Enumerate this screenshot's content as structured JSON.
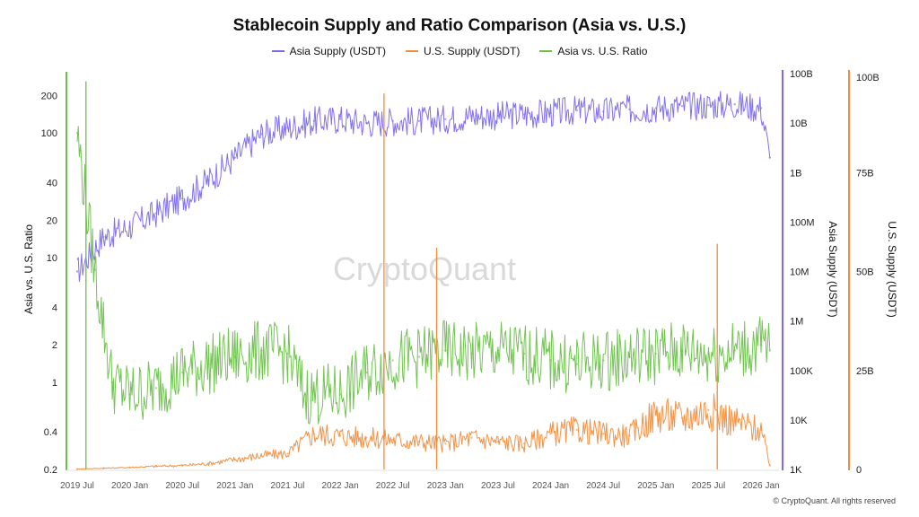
{
  "chart_data": {
    "type": "line",
    "title": "Stablecoin Supply and Ratio Comparison (Asia vs. U.S.)",
    "watermark": "CryptoQuant",
    "footer": "© CryptoQuant. All rights reserved",
    "x_tick_labels": [
      "2019 Jul",
      "2020 Jan",
      "2020 Jul",
      "2021 Jan",
      "2021 Jul",
      "2022 Jan",
      "2022 Jul",
      "2023 Jan",
      "2023 Jul",
      "2024 Jan",
      "2024 Jul",
      "2025 Jan",
      "2025 Jul",
      "2026 Jan"
    ],
    "axes": {
      "left": {
        "label": "Asia vs. U.S. Ratio",
        "scale": "log",
        "range": [
          0.2,
          300
        ],
        "tick_values": [
          0.2,
          0.4,
          1,
          2,
          4,
          10,
          20,
          40,
          100,
          200
        ],
        "tick_labels": [
          "0.2",
          "0.4",
          "1",
          "2",
          "4",
          "10",
          "20",
          "40",
          "100",
          "200"
        ]
      },
      "right1": {
        "label": "Asia Supply (USDT)",
        "scale": "log",
        "range": [
          1000,
          100000000000
        ],
        "tick_values": [
          1000,
          10000,
          100000,
          1000000,
          10000000,
          100000000,
          1000000000,
          10000000000,
          100000000000
        ],
        "tick_labels": [
          "1K",
          "10K",
          "100K",
          "1M",
          "10M",
          "100M",
          "1B",
          "10B",
          "100B"
        ]
      },
      "right2": {
        "label": "U.S. Supply (USDT)",
        "scale": "linear",
        "range": [
          0,
          100000000000
        ],
        "tick_values": [
          0,
          25000000000,
          50000000000,
          75000000000,
          100000000000
        ],
        "tick_labels": [
          "0",
          "25B",
          "50B",
          "75B",
          "100B"
        ]
      }
    },
    "series": [
      {
        "name": "Asia Supply (USDT)",
        "color": "#7b68ee",
        "axis": "right1",
        "x": [
          "2019-07",
          "2019-10",
          "2020-01",
          "2020-04",
          "2020-07",
          "2020-10",
          "2021-01",
          "2021-04",
          "2021-07",
          "2021-10",
          "2022-01",
          "2022-04",
          "2022-07",
          "2022-10",
          "2023-01",
          "2023-04",
          "2023-07",
          "2023-10",
          "2024-01",
          "2024-04",
          "2024-07",
          "2024-10",
          "2025-01",
          "2025-04",
          "2025-07",
          "2025-10",
          "2026-01",
          "2026-02"
        ],
        "values": [
          10000000,
          50000000,
          80000000,
          150000000,
          300000000,
          700000000,
          2000000000,
          6000000000,
          8000000000,
          11000000000,
          12000000000,
          10000000000,
          11000000000,
          11000000000,
          12000000000,
          14000000000,
          14000000000,
          15000000000,
          16000000000,
          18000000000,
          17000000000,
          19000000000,
          20000000000,
          22000000000,
          23000000000,
          24000000000,
          20000000000,
          2000000000
        ]
      },
      {
        "name": "U.S. Supply (USDT)",
        "color": "#f28c3c",
        "axis": "right2",
        "x": [
          "2019-07",
          "2019-10",
          "2020-01",
          "2020-04",
          "2020-07",
          "2020-10",
          "2021-01",
          "2021-04",
          "2021-07",
          "2021-10",
          "2022-01",
          "2022-04",
          "2022-07",
          "2022-10",
          "2023-01",
          "2023-04",
          "2023-07",
          "2023-10",
          "2024-01",
          "2024-04",
          "2024-07",
          "2024-10",
          "2025-01",
          "2025-04",
          "2025-07",
          "2025-10",
          "2026-01",
          "2026-02"
        ],
        "values": [
          100000000,
          300000000,
          500000000,
          800000000,
          1000000000,
          1500000000,
          2500000000,
          3500000000,
          4000000000,
          9000000000,
          8500000000,
          8000000000,
          7500000000,
          7000000000,
          6500000000,
          8000000000,
          7000000000,
          6500000000,
          9000000000,
          10000000000,
          9000000000,
          8500000000,
          14000000000,
          13000000000,
          15000000000,
          12000000000,
          10000000000,
          1000000000
        ]
      },
      {
        "name": "Asia vs. U.S. Ratio",
        "color": "#6cc04a",
        "axis": "left",
        "x": [
          "2019-07",
          "2019-09",
          "2019-11",
          "2020-01",
          "2020-04",
          "2020-07",
          "2020-10",
          "2021-01",
          "2021-04",
          "2021-07",
          "2021-09",
          "2022-01",
          "2022-04",
          "2022-07",
          "2022-10",
          "2023-01",
          "2023-04",
          "2023-07",
          "2023-10",
          "2024-01",
          "2024-04",
          "2024-07",
          "2024-10",
          "2025-01",
          "2025-04",
          "2025-07",
          "2025-10",
          "2026-01",
          "2026-02"
        ],
        "values": [
          100,
          8,
          1,
          0.8,
          0.9,
          1.2,
          1.4,
          1.6,
          1.8,
          1.7,
          0.8,
          0.8,
          1.2,
          1.5,
          1.6,
          1.8,
          1.7,
          1.8,
          1.7,
          1.5,
          1.4,
          1.5,
          1.6,
          1.7,
          1.8,
          1.7,
          1.8,
          2.0,
          1.8
        ]
      }
    ],
    "spikes": [
      {
        "series": "U.S. Supply (USDT)",
        "x": "2022-06",
        "value": 95000000000
      },
      {
        "series": "U.S. Supply (USDT)",
        "x": "2022-12",
        "value": 56000000000
      },
      {
        "series": "U.S. Supply (USDT)",
        "x": "2025-08",
        "value": 57000000000
      },
      {
        "series": "Asia vs. U.S. Ratio",
        "x": "2019-08",
        "value": 260
      }
    ]
  }
}
